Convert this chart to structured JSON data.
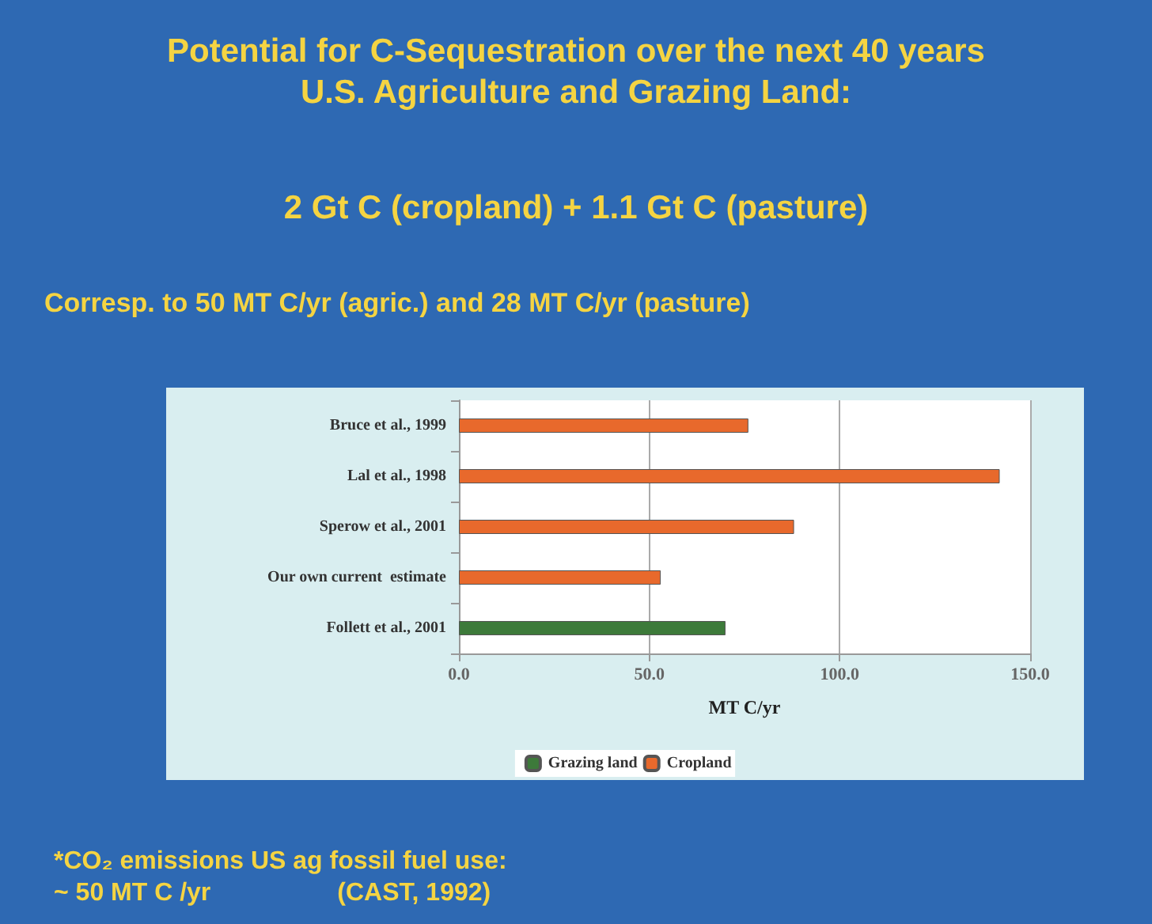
{
  "chart_data": {
    "type": "bar",
    "orientation": "horizontal",
    "stacked": true,
    "title": "Potential for C-Sequestration over the next 40 years\nU.S. Agriculture and Grazing Land:",
    "subtitle": "2 Gt C (cropland) + 1.1 Gt C (pasture)",
    "annotations": [
      "Corresp. to 50 MT C/yr (agric.) and 28 MT C/yr (pasture)",
      "*CO₂ emissions US ag fossil fuel use:\n~ 50 MT C /yr                  (CAST, 1992)"
    ],
    "xlabel": "MT C/yr",
    "categories": [
      "Bruce et al., 1999",
      "Lal et al., 1998",
      "Sperow et al., 2001",
      "Our own current  estimate",
      "Follett et al., 2001"
    ],
    "series": [
      {
        "name": "Grazing land",
        "color": "#3d7a3a",
        "values": [
          null,
          null,
          null,
          null,
          70
        ]
      },
      {
        "name": "Cropland",
        "color": "#e8692c",
        "values": [
          76,
          142,
          88,
          53,
          null
        ]
      }
    ],
    "xlim": [
      0,
      150
    ],
    "xticks": [
      {
        "value": 0,
        "label": "0.0"
      },
      {
        "value": 50,
        "label": "50.0"
      },
      {
        "value": 100,
        "label": "100.0"
      },
      {
        "value": 150,
        "label": "150.0"
      }
    ],
    "grid": "x",
    "legend": "bottom"
  }
}
